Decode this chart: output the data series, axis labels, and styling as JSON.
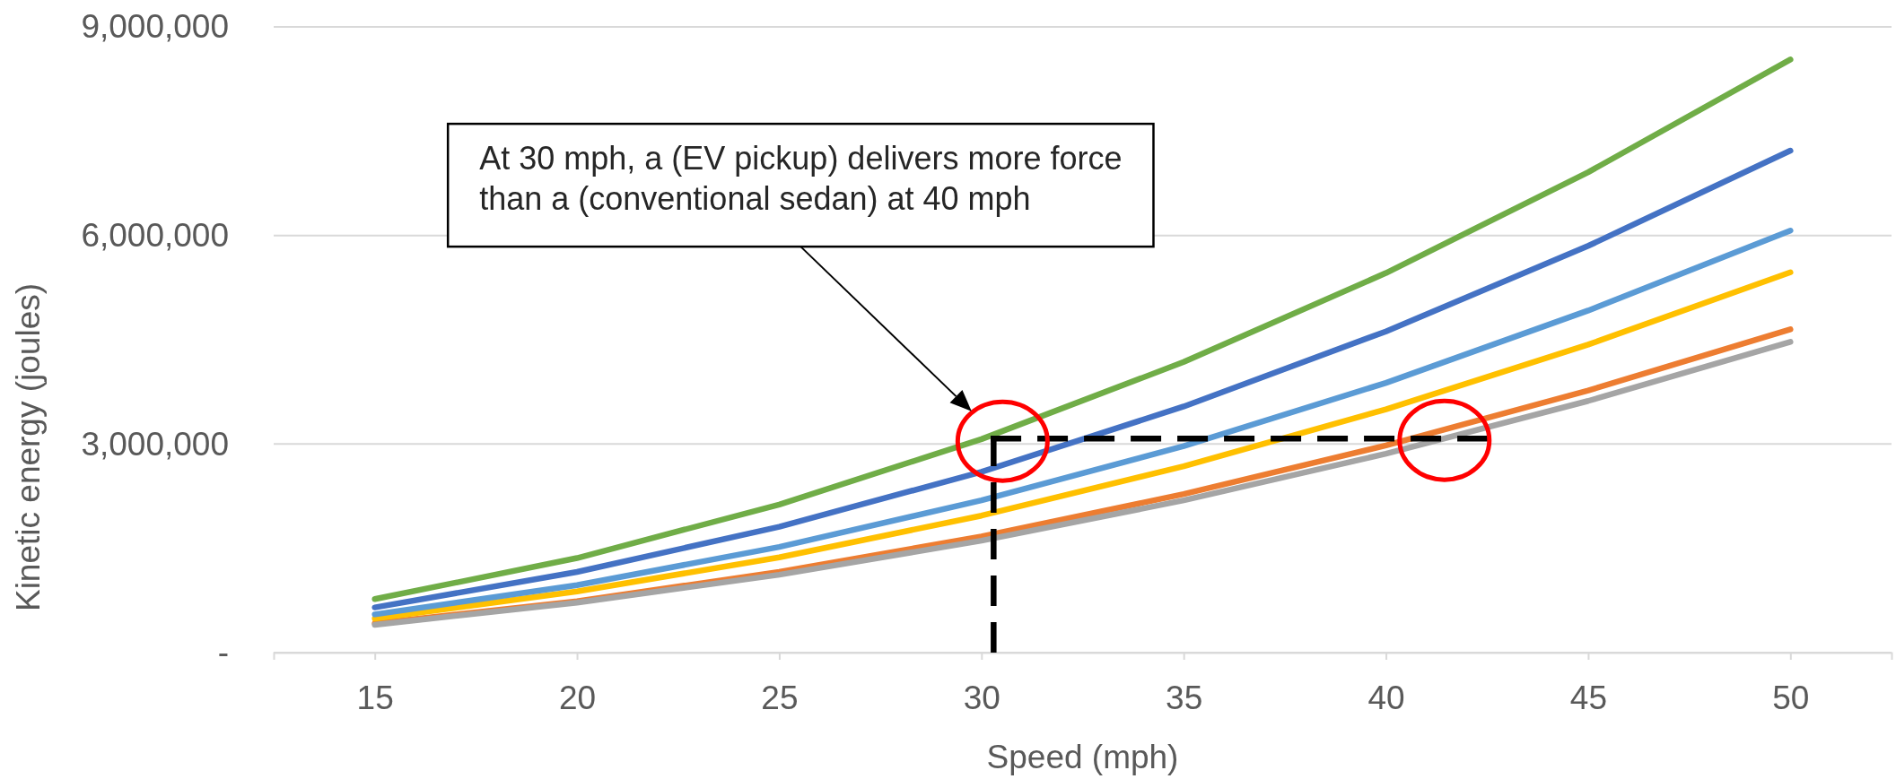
{
  "chart_data": {
    "type": "line",
    "xlabel": "Speed (mph)",
    "ylabel": "Kinetic energy (joules)",
    "x": [
      15,
      20,
      25,
      30,
      35,
      40,
      45,
      50
    ],
    "xlim": [
      12.5,
      52.5
    ],
    "xticks": [
      15,
      20,
      25,
      30,
      35,
      40,
      45,
      50
    ],
    "ylim": [
      0,
      9000000
    ],
    "yticks": [
      {
        "value": 0,
        "label": "-"
      },
      {
        "value": 3000000,
        "label": "3,000,000"
      },
      {
        "value": 6000000,
        "label": "6,000,000"
      },
      {
        "value": 9000000,
        "label": "9,000,000"
      }
    ],
    "grid": "y",
    "series": [
      {
        "color": "#4472c4",
        "values": [
          650000,
          1160000,
          1810000,
          2600000,
          3540000,
          4620000,
          5850000,
          7220000
        ]
      },
      {
        "color": "#ed7d31",
        "values": [
          420000,
          740000,
          1160000,
          1670000,
          2280000,
          2980000,
          3770000,
          4650000
        ]
      },
      {
        "color": "#a5a5a5",
        "values": [
          400000,
          720000,
          1120000,
          1610000,
          2190000,
          2860000,
          3620000,
          4470000
        ]
      },
      {
        "color": "#ffc000",
        "values": [
          490000,
          880000,
          1370000,
          1970000,
          2680000,
          3500000,
          4430000,
          5470000
        ]
      },
      {
        "color": "#5b9bd5",
        "values": [
          550000,
          970000,
          1520000,
          2190000,
          2970000,
          3880000,
          4920000,
          6070000
        ]
      },
      {
        "color": "#70ad47",
        "values": [
          770000,
          1360000,
          2130000,
          3070000,
          4180000,
          5460000,
          6910000,
          8530000
        ]
      }
    ],
    "ref_lines": [
      {
        "axis": "x",
        "value": 30.3,
        "color": "#000000",
        "line_style": "dashed"
      },
      {
        "axis": "y",
        "value": 3080000,
        "color": "#000000",
        "line_style": "dashed"
      }
    ],
    "annotations": [
      "At 30 mph, a (EV pickup) delivers more force than a (conventional sedan) at 40 mph"
    ]
  }
}
